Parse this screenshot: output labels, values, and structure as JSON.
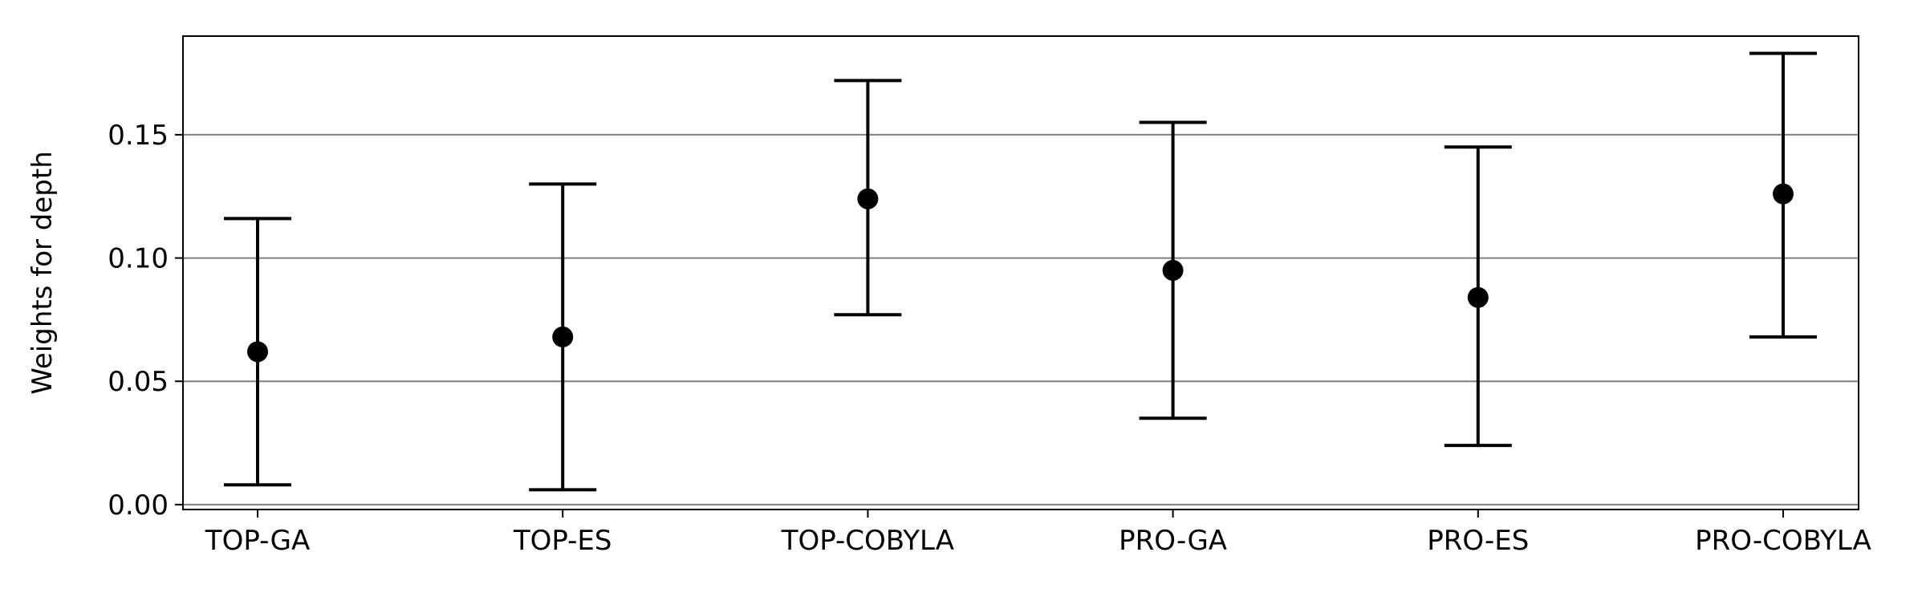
{
  "chart_data": {
    "type": "errorbar",
    "title": "",
    "xlabel": "",
    "ylabel": "Weights for depth",
    "categories": [
      "TOP-GA",
      "TOP-ES",
      "TOP-COBYLA",
      "PRO-GA",
      "PRO-ES",
      "PRO-COBYLA"
    ],
    "series": [
      {
        "values": [
          0.062,
          0.068,
          0.124,
          0.095,
          0.084,
          0.126
        ],
        "lower": [
          0.008,
          0.006,
          0.077,
          0.035,
          0.024,
          0.068
        ],
        "upper": [
          0.116,
          0.13,
          0.172,
          0.155,
          0.145,
          0.183
        ]
      }
    ],
    "ylim": [
      -0.002,
      0.19
    ],
    "yticks": [
      0.0,
      0.05,
      0.1,
      0.15
    ],
    "ytick_labels": [
      "0.00",
      "0.05",
      "0.10",
      "0.15"
    ],
    "grid": "horizontal",
    "legend": "none",
    "colors": {
      "marker": "#000000",
      "errorbar": "#000000",
      "grid": "#808080",
      "axis": "#000000"
    }
  }
}
